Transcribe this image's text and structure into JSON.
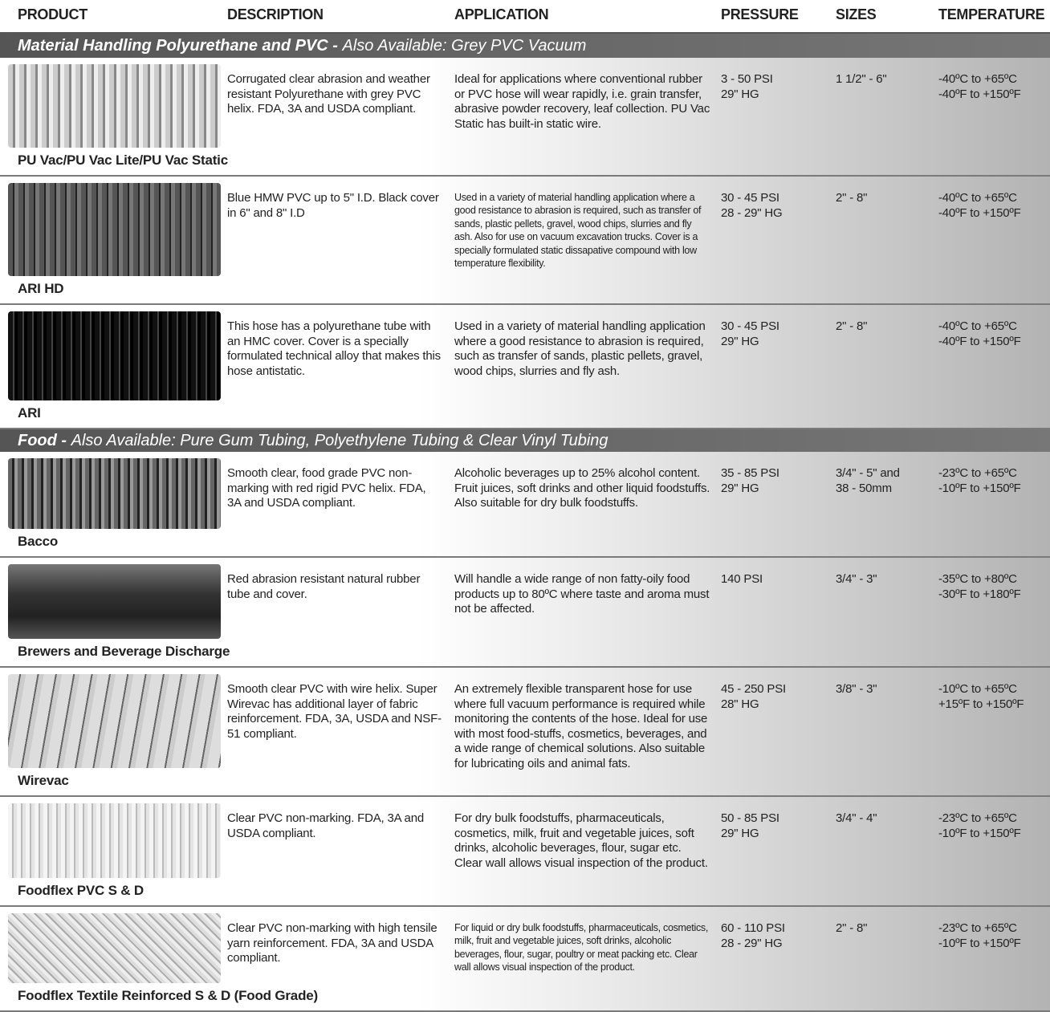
{
  "header": [
    "PRODUCT",
    "DESCRIPTION",
    "APPLICATION",
    "PRESSURE",
    "SIZES",
    "TEMPERATURE"
  ],
  "sections": [
    {
      "title": "Material Handling Polyurethane and PVC - ",
      "subtitle": "Also Available:  Grey PVC Vacuum",
      "rows": [
        {
          "product": "PU Vac/PU Vac Lite/PU Vac Static",
          "description": "Corrugated clear abrasion and weather resistant Polyurethane with grey PVC helix. FDA, 3A and USDA compliant.",
          "application": "Ideal for applications where conventional rubber or PVC hose will wear rapidly, i.e. grain transfer, abrasive powder recovery, leaf collection. PU Vac Static has built-in static wire.",
          "pressure": [
            "3 - 50 PSI",
            "29\" HG"
          ],
          "sizes": [
            "1 1/2\" - 6\""
          ],
          "temperature": [
            "-40ºC to +65ºC",
            "-40ºF to +150ºF"
          ]
        },
        {
          "product": "ARI HD",
          "description": "Blue HMW PVC up to 5\" I.D. Black cover in 6\" and 8\" I.D",
          "application": "Used in a variety of material handling application where a good resistance to abrasion is required, such as transfer of sands, plastic pellets, gravel, wood chips, slurries and fly ash. Also for use on vacuum excavation trucks. Cover is a specially formulated static dissapative compound with low temperature flexibility.",
          "pressure": [
            "30 - 45 PSI",
            "28 - 29\" HG"
          ],
          "sizes": [
            "2\" - 8\""
          ],
          "temperature": [
            "-40ºC to +65ºC",
            "-40ºF to +150ºF"
          ]
        },
        {
          "product": "ARI",
          "description": "This hose has a polyurethane tube with an HMC cover. Cover is a specially formulated technical alloy that makes this hose antistatic.",
          "application": "Used in a variety of material handling application where a good resistance to abrasion is required, such as transfer of sands, plastic pellets, gravel, wood chips, slurries and fly ash.",
          "pressure": [
            "30 - 45 PSI",
            "29\" HG"
          ],
          "sizes": [
            "2\" - 8\""
          ],
          "temperature": [
            "-40ºC to +65ºC",
            "-40ºF to +150ºF"
          ]
        }
      ]
    },
    {
      "title": "Food - ",
      "subtitle": "Also Available: Pure Gum Tubing, Polyethylene Tubing & Clear Vinyl Tubing",
      "rows": [
        {
          "product": "Bacco",
          "description": "Smooth clear, food grade PVC non-marking with red rigid PVC helix. FDA, 3A and USDA compliant.",
          "application": "Alcoholic beverages up to 25% alcohol content. Fruit juices, soft drinks and other liquid foodstuffs. Also suitable for dry bulk foodstuffs.",
          "pressure": [
            "35 - 85 PSI",
            "29\" HG"
          ],
          "sizes": [
            "3/4\" - 5\" and",
            "38 - 50mm"
          ],
          "temperature": [
            "-23ºC to +65ºC",
            "-10ºF to +150ºF"
          ]
        },
        {
          "product": "Brewers and Beverage Discharge",
          "description": "Red abrasion resistant natural rubber tube and cover.",
          "application": "Will handle a wide range of non fatty-oily food products up to 80ºC where taste and aroma must not be affected.",
          "pressure": [
            "140 PSI"
          ],
          "sizes": [
            "3/4\" - 3\""
          ],
          "temperature": [
            "-35ºC to +80ºC",
            "-30ºF to +180ºF"
          ]
        },
        {
          "product": "Wirevac",
          "description": "Smooth clear PVC with wire helix. Super Wirevac has additional layer of fabric reinforcement. FDA, 3A, USDA and NSF-51 compliant.",
          "application": "An extremely flexible transparent hose for use where full vacuum performance is required while monitoring the contents of the hose.  Ideal for use with most food-stuffs, cosmetics, beverages, and a wide range of chemical solutions.  Also suitable for lubricating oils and animal fats.",
          "pressure": [
            "45 - 250 PSI",
            "28\" HG"
          ],
          "sizes": [
            "3/8\" - 3\""
          ],
          "temperature": [
            "-10ºC to +65ºC",
            "+15ºF to +150ºF"
          ]
        },
        {
          "product": "Foodflex PVC S & D",
          "description": "Clear PVC non-marking. FDA, 3A and USDA compliant.",
          "application": "For dry bulk foodstuffs, pharmaceuticals, cosmetics, milk, fruit and vegetable juices, soft drinks, alcoholic beverages, flour, sugar etc. Clear wall allows visual inspection of the product.",
          "pressure": [
            "50 - 85 PSI",
            "29\" HG"
          ],
          "sizes": [
            "3/4\" - 4\""
          ],
          "temperature": [
            "-23ºC to +65ºC",
            "-10ºF to +150ºF"
          ]
        },
        {
          "product": "Foodflex Textile Reinforced S & D (Food Grade)",
          "description": "Clear PVC non-marking with high tensile yarn reinforcement. FDA, 3A and USDA compliant.",
          "application": "For liquid or dry bulk foodstuffs, pharmaceuticals, cosmetics, milk, fruit and vegetable juices, soft drinks, alcoholic beverages, flour, sugar, poultry or meat packing etc. Clear wall allows visual inspection of the product.",
          "pressure": [
            "60 - 110 PSI",
            "28 - 29\" HG"
          ],
          "sizes": [
            "2\" - 8\""
          ],
          "temperature": [
            "-23ºC to +65ºC",
            "-10ºF to +150ºF"
          ]
        }
      ]
    }
  ]
}
